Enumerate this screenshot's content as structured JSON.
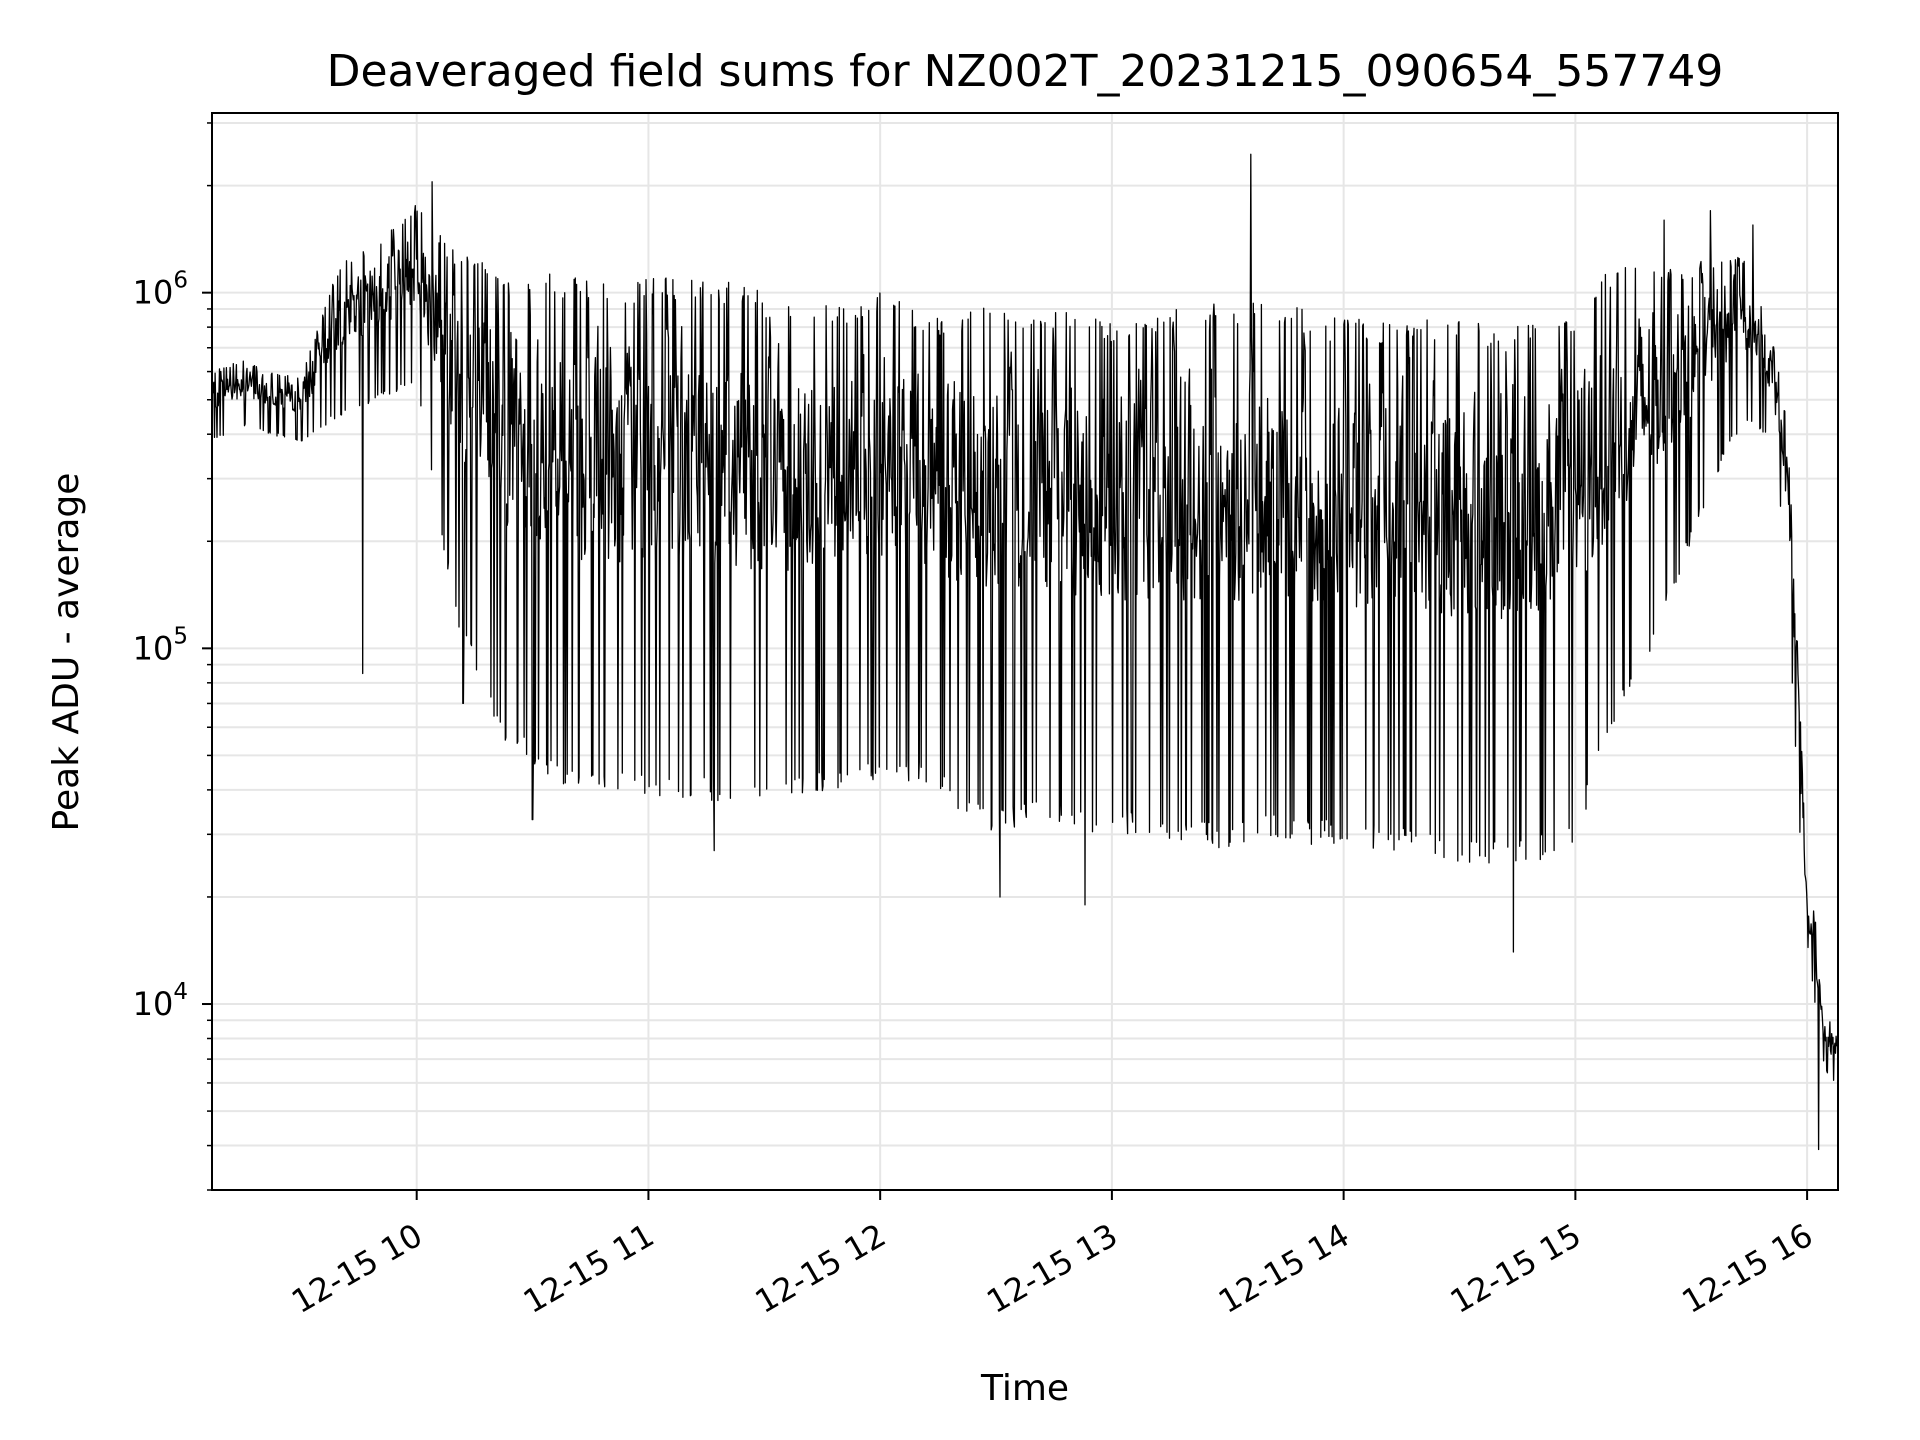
{
  "chart_data": {
    "type": "line",
    "title": "Deaveraged field sums for NZ002T_20231215_090654_557749",
    "xlabel": "Time",
    "ylabel": "Peak ADU - average",
    "y_scale": "log",
    "ylim": [
      3000,
      3200000
    ],
    "xlim": [
      "2023-12-15 09:07",
      "2023-12-15 16:08"
    ],
    "grid": true,
    "line_color": "#000000",
    "grid_color": "#e6e6e6",
    "x_ticks": [
      {
        "value": "2023-12-15 10:00",
        "label": "12-15 10"
      },
      {
        "value": "2023-12-15 11:00",
        "label": "12-15 11"
      },
      {
        "value": "2023-12-15 12:00",
        "label": "12-15 12"
      },
      {
        "value": "2023-12-15 13:00",
        "label": "12-15 13"
      },
      {
        "value": "2023-12-15 14:00",
        "label": "12-15 14"
      },
      {
        "value": "2023-12-15 15:00",
        "label": "12-15 15"
      },
      {
        "value": "2023-12-15 16:00",
        "label": "12-15 16"
      }
    ],
    "y_ticks": [
      {
        "value": 10000,
        "base": "10",
        "exp": "4"
      },
      {
        "value": 100000,
        "base": "10",
        "exp": "5"
      },
      {
        "value": 1000000,
        "base": "10",
        "exp": "6"
      }
    ],
    "series": [
      {
        "x": [
          "2023-12-15 09:07",
          "2023-12-15 09:15",
          "2023-12-15 09:22",
          "2023-12-15 09:30",
          "2023-12-15 09:40",
          "2023-12-15 09:50",
          "2023-12-15 10:00",
          "2023-12-15 10:10",
          "2023-12-15 10:20",
          "2023-12-15 10:30",
          "2023-12-15 10:40",
          "2023-12-15 10:50",
          "2023-12-15 11:00",
          "2023-12-15 11:10",
          "2023-12-15 11:20",
          "2023-12-15 11:30",
          "2023-12-15 11:40",
          "2023-12-15 11:50",
          "2023-12-15 12:00",
          "2023-12-15 12:10",
          "2023-12-15 12:20",
          "2023-12-15 12:30",
          "2023-12-15 12:40",
          "2023-12-15 12:50",
          "2023-12-15 13:00",
          "2023-12-15 13:10",
          "2023-12-15 13:20",
          "2023-12-15 13:30",
          "2023-12-15 13:40",
          "2023-12-15 13:50",
          "2023-12-15 14:00",
          "2023-12-15 14:10",
          "2023-12-15 14:20",
          "2023-12-15 14:30",
          "2023-12-15 14:40",
          "2023-12-15 14:50",
          "2023-12-15 15:00",
          "2023-12-15 15:10",
          "2023-12-15 15:20",
          "2023-12-15 15:30",
          "2023-12-15 15:40",
          "2023-12-15 15:45",
          "2023-12-15 15:50",
          "2023-12-15 15:53",
          "2023-12-15 15:55",
          "2023-12-15 15:57",
          "2023-12-15 15:59",
          "2023-12-15 16:00",
          "2023-12-15 16:02",
          "2023-12-15 16:04",
          "2023-12-15 16:06",
          "2023-12-15 16:08"
        ],
        "upper": [
          600000,
          650000,
          600000,
          580000,
          1200000,
          1400000,
          1800000,
          1300000,
          1200000,
          1200000,
          1100000,
          1100000,
          1100000,
          1100000,
          1100000,
          1000000,
          1000000,
          950000,
          1000000,
          900000,
          850000,
          950000,
          900000,
          900000,
          850000,
          900000,
          900000,
          950000,
          950000,
          900000,
          850000,
          850000,
          850000,
          850000,
          800000,
          850000,
          900000,
          1200000,
          1200000,
          1200000,
          1300000,
          1200000,
          800000,
          600000,
          400000,
          150000,
          40000,
          20000,
          18000,
          10000,
          9000,
          9000
        ],
        "lower": [
          380000,
          420000,
          400000,
          380000,
          450000,
          500000,
          550000,
          120000,
          60000,
          45000,
          40000,
          38000,
          38000,
          38000,
          36000,
          38000,
          38000,
          40000,
          42000,
          42000,
          35000,
          30000,
          32000,
          30000,
          30000,
          30000,
          28000,
          27000,
          30000,
          28000,
          28000,
          27000,
          26000,
          25000,
          24000,
          25000,
          28000,
          60000,
          100000,
          200000,
          380000,
          420000,
          400000,
          250000,
          150000,
          50000,
          20000,
          15000,
          10000,
          7000,
          6000,
          6000
        ],
        "peaks": [
          {
            "x": "2023-12-15 09:46",
            "y": 85000
          },
          {
            "x": "2023-12-15 10:04",
            "y": 2050000
          },
          {
            "x": "2023-12-15 10:12",
            "y": 70000
          },
          {
            "x": "2023-12-15 10:30",
            "y": 33000
          },
          {
            "x": "2023-12-15 11:17",
            "y": 27000
          },
          {
            "x": "2023-12-15 12:31",
            "y": 20000
          },
          {
            "x": "2023-12-15 12:53",
            "y": 19000
          },
          {
            "x": "2023-12-15 13:36",
            "y": 2450000
          },
          {
            "x": "2023-12-15 14:44",
            "y": 14000
          },
          {
            "x": "2023-12-15 15:23",
            "y": 1600000
          },
          {
            "x": "2023-12-15 15:35",
            "y": 1700000
          },
          {
            "x": "2023-12-15 15:46",
            "y": 1550000
          },
          {
            "x": "2023-12-15 16:03",
            "y": 3900
          }
        ]
      }
    ]
  }
}
